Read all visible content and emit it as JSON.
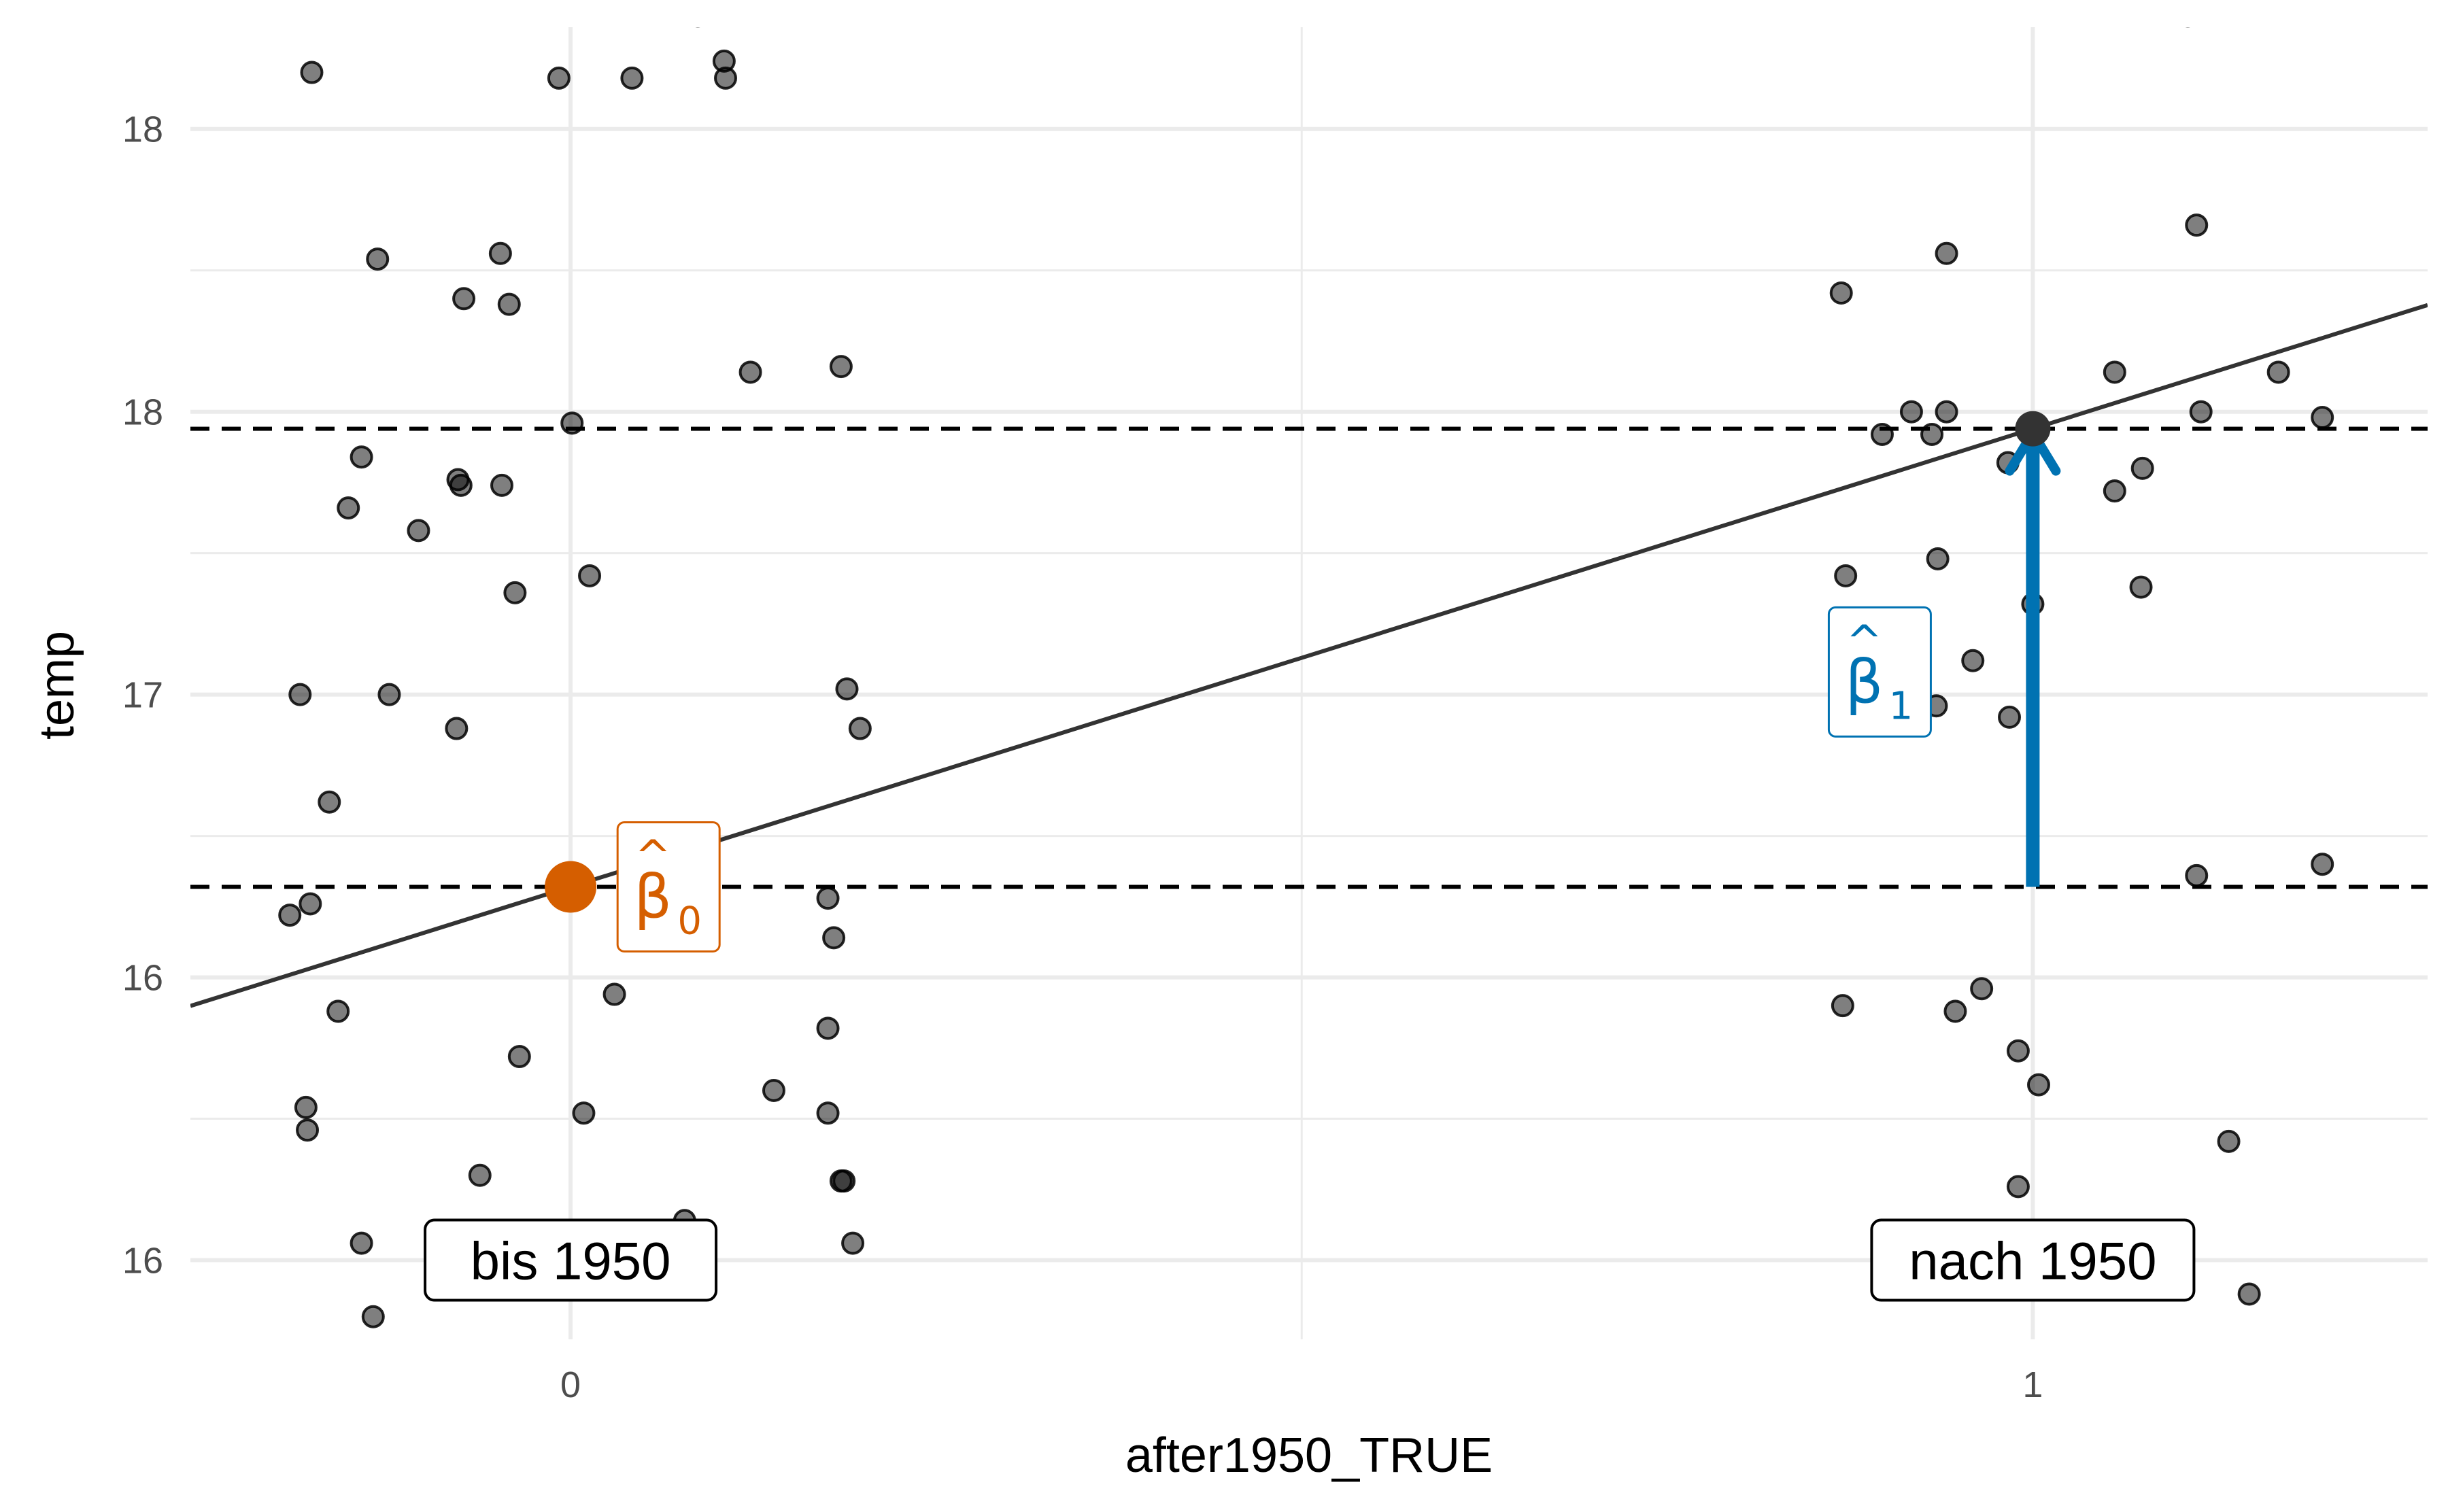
{
  "chart_data": {
    "type": "scatter",
    "xlabel": "after1950_TRUE",
    "ylabel": "temp",
    "xlim": [
      -0.26,
      1.27
    ],
    "ylim": [
      15.86,
      18.18
    ],
    "x_ticks": [
      {
        "value": 0,
        "label": "0"
      },
      {
        "value": 1,
        "label": "1"
      }
    ],
    "y_ticks": [
      {
        "value": 16.0,
        "label": "16"
      },
      {
        "value": 16.5,
        "label": "16"
      },
      {
        "value": 17.0,
        "label": "17"
      },
      {
        "value": 17.5,
        "label": "18"
      },
      {
        "value": 18.0,
        "label": "18"
      }
    ],
    "y_minor": [
      16.25,
      16.75,
      17.25,
      17.75
    ],
    "x_minor": [
      0.5
    ],
    "grid": true,
    "regression": {
      "intercept": 16.66,
      "slope": 0.81
    },
    "hlines": [
      16.66,
      17.47
    ],
    "beta0_point": {
      "x": 0,
      "y": 16.66,
      "color": "#d55e00"
    },
    "beta1_point": {
      "x": 1,
      "y": 17.47,
      "color": "#333333"
    },
    "arrow": {
      "x": 1,
      "from": 16.66,
      "to": 17.47,
      "color": "#0072b2"
    },
    "annotations": [
      {
        "id": "beta0",
        "label": "β",
        "hat": "^",
        "sub": "0",
        "x": 0.034,
        "y": 16.66,
        "color": "#d55e00"
      },
      {
        "id": "beta1",
        "label": "β",
        "hat": "^",
        "sub": "1",
        "x": 0.07,
        "y": 17.04,
        "color": "#0072b2"
      }
    ],
    "group_labels": [
      {
        "text": "bis 1950",
        "x": 0,
        "y": 16.0
      },
      {
        "text": "nach 1950",
        "x": 1,
        "y": 16.0
      }
    ],
    "points": [
      {
        "x": -0.177,
        "y": 18.1
      },
      {
        "x": 0.087,
        "y": 18.2
      },
      {
        "x": -0.073,
        "y": 17.7
      },
      {
        "x": -0.042,
        "y": 17.69
      },
      {
        "x": 0.123,
        "y": 17.57
      },
      {
        "x": 0.185,
        "y": 17.58
      },
      {
        "x": 0.001,
        "y": 17.48
      },
      {
        "x": -0.143,
        "y": 17.42
      },
      {
        "x": -0.077,
        "y": 17.38
      },
      {
        "x": -0.075,
        "y": 17.37
      },
      {
        "x": -0.047,
        "y": 17.37
      },
      {
        "x": -0.152,
        "y": 17.33
      },
      {
        "x": -0.104,
        "y": 17.29
      },
      {
        "x": -0.038,
        "y": 17.18
      },
      {
        "x": 0.013,
        "y": 17.21
      },
      {
        "x": -0.185,
        "y": 17.0
      },
      {
        "x": -0.124,
        "y": 17.0
      },
      {
        "x": 0.189,
        "y": 17.01
      },
      {
        "x": -0.078,
        "y": 16.94
      },
      {
        "x": 0.198,
        "y": 16.94
      },
      {
        "x": -0.165,
        "y": 16.81
      },
      {
        "x": -0.192,
        "y": 16.61
      },
      {
        "x": -0.178,
        "y": 16.63
      },
      {
        "x": 0.176,
        "y": 16.64
      },
      {
        "x": 0.18,
        "y": 16.57
      },
      {
        "x": 0.03,
        "y": 16.47
      },
      {
        "x": -0.159,
        "y": 16.44
      },
      {
        "x": 0.176,
        "y": 16.41
      },
      {
        "x": -0.035,
        "y": 16.36
      },
      {
        "x": 0.139,
        "y": 16.3
      },
      {
        "x": -0.181,
        "y": 16.27
      },
      {
        "x": 0.176,
        "y": 16.26
      },
      {
        "x": 0.009,
        "y": 16.26
      },
      {
        "x": -0.18,
        "y": 16.23
      },
      {
        "x": -0.062,
        "y": 16.15
      },
      {
        "x": 0.185,
        "y": 16.14
      },
      {
        "x": 0.187,
        "y": 16.14
      },
      {
        "x": 0.078,
        "y": 16.07
      },
      {
        "x": -0.143,
        "y": 16.03
      },
      {
        "x": 0.193,
        "y": 16.03
      },
      {
        "x": 0.09,
        "y": 15.97
      },
      {
        "x": -0.135,
        "y": 15.9
      },
      {
        "x": -0.008,
        "y": 18.09
      },
      {
        "x": 0.105,
        "y": 18.12
      },
      {
        "x": 0.042,
        "y": 18.09
      },
      {
        "x": 0.106,
        "y": 18.09
      },
      {
        "x": -0.132,
        "y": 17.77
      },
      {
        "x": -0.048,
        "y": 17.78
      },
      {
        "x": 1.112,
        "y": 17.83
      },
      {
        "x": 1.056,
        "y": 17.57
      },
      {
        "x": 1.168,
        "y": 17.57
      },
      {
        "x": 1.115,
        "y": 17.5
      },
      {
        "x": 0.917,
        "y": 17.5
      },
      {
        "x": 0.941,
        "y": 17.5
      },
      {
        "x": 0.897,
        "y": 17.46
      },
      {
        "x": 1.198,
        "y": 17.49
      },
      {
        "x": 1.075,
        "y": 17.4
      },
      {
        "x": 1.056,
        "y": 17.36
      },
      {
        "x": 0.983,
        "y": 17.41
      },
      {
        "x": 0.869,
        "y": 17.71
      },
      {
        "x": 0.941,
        "y": 17.78
      },
      {
        "x": 0.872,
        "y": 17.21
      },
      {
        "x": 0.935,
        "y": 17.24
      },
      {
        "x": 1.0,
        "y": 17.16
      },
      {
        "x": 1.074,
        "y": 17.19
      },
      {
        "x": 0.959,
        "y": 17.06
      },
      {
        "x": 0.934,
        "y": 16.98
      },
      {
        "x": 0.984,
        "y": 16.96
      },
      {
        "x": 1.112,
        "y": 16.68
      },
      {
        "x": 1.198,
        "y": 16.7
      },
      {
        "x": 0.931,
        "y": 17.46
      },
      {
        "x": 0.87,
        "y": 16.45
      },
      {
        "x": 0.947,
        "y": 16.44
      },
      {
        "x": 0.965,
        "y": 16.48
      },
      {
        "x": 0.99,
        "y": 16.37
      },
      {
        "x": 1.004,
        "y": 16.31
      },
      {
        "x": 1.134,
        "y": 16.21
      },
      {
        "x": 0.99,
        "y": 16.13
      },
      {
        "x": 1.148,
        "y": 15.94
      },
      {
        "x": 1.039,
        "y": 18.21
      },
      {
        "x": 1.106,
        "y": 18.2
      }
    ]
  }
}
